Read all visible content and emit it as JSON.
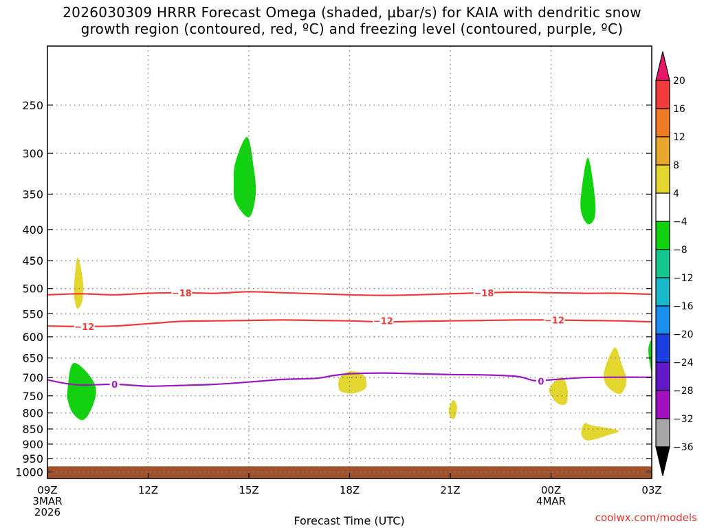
{
  "chart_data": {
    "type": "contour-time-height",
    "title_line1": "2026030309 HRRR Forecast Omega (shaded, μbar/s) for KAIA with dendritic snow",
    "title_line2": "growth region (contoured, red, ºC) and freezing level (contoured, purple, ºC)",
    "xlabel": "Forecast Time (UTC)",
    "credit": "coolwx.com/models",
    "x_range_hours": [
      0,
      18
    ],
    "y_range_hpa": [
      1025,
      200
    ],
    "x_ticks": [
      {
        "h": 0,
        "label": "09Z",
        "sub": "3MAR",
        "sub2": "2026"
      },
      {
        "h": 3,
        "label": "12Z"
      },
      {
        "h": 6,
        "label": "15Z"
      },
      {
        "h": 9,
        "label": "18Z"
      },
      {
        "h": 12,
        "label": "21Z"
      },
      {
        "h": 15,
        "label": "00Z",
        "sub": "4MAR"
      },
      {
        "h": 18,
        "label": "03Z"
      }
    ],
    "y_ticks": [
      250,
      300,
      350,
      400,
      450,
      500,
      550,
      600,
      650,
      700,
      750,
      800,
      850,
      900,
      950,
      1000
    ],
    "colorbar": {
      "levels": [
        "20",
        "16",
        "12",
        "8",
        "4",
        "−4",
        "−8",
        "−12",
        "−16",
        "−20",
        "−24",
        "−28",
        "−32",
        "−36"
      ],
      "colors": [
        "#e8166b",
        "#f23b3b",
        "#ef7a24",
        "#e8a62c",
        "#e2d62f",
        "#ffffff",
        "#10d20f",
        "#12c88c",
        "#18b9c9",
        "#1a8ff0",
        "#1b3fe0",
        "#6218c8",
        "#a010c0",
        "#a6a6a6",
        "#000000"
      ]
    },
    "isotherms": [
      {
        "name": "-18",
        "color": "#f03838",
        "label": "−18",
        "label_at_h": [
          [
            4.0,
            508
          ],
          [
            13.0,
            508
          ]
        ],
        "points": [
          [
            0,
            512
          ],
          [
            1,
            510
          ],
          [
            2,
            512
          ],
          [
            3,
            509
          ],
          [
            4,
            508
          ],
          [
            5,
            509
          ],
          [
            6,
            506
          ],
          [
            7,
            508
          ],
          [
            8,
            510
          ],
          [
            9,
            512
          ],
          [
            10,
            513
          ],
          [
            11,
            512
          ],
          [
            12,
            510
          ],
          [
            13,
            508
          ],
          [
            14,
            507
          ],
          [
            15,
            508
          ],
          [
            16,
            509
          ],
          [
            17,
            509
          ],
          [
            18,
            511
          ]
        ]
      },
      {
        "name": "-12",
        "color": "#f03838",
        "label": "−12",
        "label_at_h": [
          [
            1.1,
            577
          ],
          [
            10.0,
            565
          ],
          [
            15.1,
            563
          ]
        ],
        "points": [
          [
            0,
            576
          ],
          [
            1,
            577
          ],
          [
            2,
            576
          ],
          [
            3,
            571
          ],
          [
            4,
            566
          ],
          [
            5,
            565
          ],
          [
            6,
            564
          ],
          [
            7,
            563
          ],
          [
            8,
            564
          ],
          [
            9,
            565
          ],
          [
            10,
            567
          ],
          [
            11,
            566
          ],
          [
            12,
            565
          ],
          [
            13,
            564
          ],
          [
            14,
            563
          ],
          [
            15,
            563
          ],
          [
            16,
            564
          ],
          [
            17,
            565
          ],
          [
            18,
            567
          ]
        ]
      },
      {
        "name": "0",
        "color": "#9a18c0",
        "label": "0",
        "label_at_h": [
          [
            2.0,
            718
          ],
          [
            14.7,
            710
          ]
        ],
        "points": [
          [
            0,
            706
          ],
          [
            0.5,
            715
          ],
          [
            1,
            720
          ],
          [
            2,
            718
          ],
          [
            3,
            723
          ],
          [
            4,
            721
          ],
          [
            5,
            718
          ],
          [
            6,
            712
          ],
          [
            7,
            705
          ],
          [
            8,
            702
          ],
          [
            8.5,
            695
          ],
          [
            9,
            690
          ],
          [
            10,
            688
          ],
          [
            11,
            690
          ],
          [
            12,
            692
          ],
          [
            13,
            693
          ],
          [
            14,
            697
          ],
          [
            14.5,
            708
          ],
          [
            15,
            706
          ],
          [
            16,
            700
          ],
          [
            17,
            699
          ],
          [
            18,
            699
          ]
        ]
      }
    ],
    "shaded_blobs": [
      {
        "value_class": "-4 to -8",
        "color": "#10d20f",
        "points": [
          [
            5.6,
            310
          ],
          [
            5.95,
            282
          ],
          [
            6.15,
            318
          ],
          [
            6.2,
            352
          ],
          [
            6.0,
            382
          ],
          [
            5.6,
            360
          ],
          [
            5.55,
            335
          ]
        ]
      },
      {
        "value_class": "-4 to -8",
        "color": "#10d20f",
        "points": [
          [
            15.9,
            348
          ],
          [
            16.1,
            305
          ],
          [
            16.3,
            352
          ],
          [
            16.3,
            382
          ],
          [
            16.1,
            392
          ],
          [
            15.9,
            375
          ]
        ]
      },
      {
        "value_class": "-4 to -8",
        "color": "#10d20f",
        "points": [
          [
            0.6,
            732
          ],
          [
            0.7,
            672
          ],
          [
            0.9,
            665
          ],
          [
            1.3,
            700
          ],
          [
            1.45,
            738
          ],
          [
            1.3,
            790
          ],
          [
            1.05,
            822
          ],
          [
            0.75,
            800
          ],
          [
            0.6,
            760
          ]
        ]
      },
      {
        "value_class": "-4 to -8",
        "color": "#10d20f",
        "points": [
          [
            18,
            610
          ],
          [
            17.9,
            628
          ],
          [
            17.95,
            668
          ],
          [
            18,
            680
          ]
        ]
      },
      {
        "value_class": "4 to 8",
        "color": "#e2d62f",
        "points": [
          [
            0.8,
            487
          ],
          [
            0.9,
            445
          ],
          [
            1.05,
            482
          ],
          [
            1.05,
            520
          ],
          [
            0.9,
            540
          ],
          [
            0.8,
            518
          ]
        ]
      },
      {
        "value_class": "4 to 8",
        "color": "#e2d62f",
        "points": [
          [
            8.7,
            702
          ],
          [
            9.0,
            684
          ],
          [
            9.4,
            692
          ],
          [
            9.5,
            724
          ],
          [
            9.3,
            738
          ],
          [
            9.0,
            743
          ],
          [
            8.7,
            734
          ]
        ]
      },
      {
        "value_class": "4 to 8",
        "color": "#e2d62f",
        "points": [
          [
            12.0,
            775
          ],
          [
            12.1,
            762
          ],
          [
            12.2,
            782
          ],
          [
            12.15,
            812
          ],
          [
            12.05,
            818
          ],
          [
            11.95,
            798
          ]
        ]
      },
      {
        "value_class": "4 to 8",
        "color": "#e2d62f",
        "points": [
          [
            15.0,
            721
          ],
          [
            15.25,
            700
          ],
          [
            15.4,
            706
          ],
          [
            15.5,
            738
          ],
          [
            15.45,
            772
          ],
          [
            15.2,
            772
          ],
          [
            14.95,
            740
          ]
        ]
      },
      {
        "value_class": "4 to 8",
        "color": "#e2d62f",
        "points": [
          [
            16.6,
            678
          ],
          [
            16.9,
            625
          ],
          [
            17.1,
            665
          ],
          [
            17.25,
            708
          ],
          [
            17.1,
            742
          ],
          [
            16.85,
            738
          ],
          [
            16.6,
            712
          ]
        ]
      },
      {
        "value_class": "4 to 8",
        "color": "#e2d62f",
        "points": [
          [
            16.0,
            832
          ],
          [
            16.2,
            838
          ],
          [
            17.0,
            855
          ],
          [
            16.7,
            870
          ],
          [
            16.1,
            888
          ],
          [
            15.9,
            865
          ]
        ]
      }
    ],
    "terrain": {
      "color": "#a0522d",
      "surface_hpa": 979,
      "bottom_hpa": 1025
    }
  }
}
